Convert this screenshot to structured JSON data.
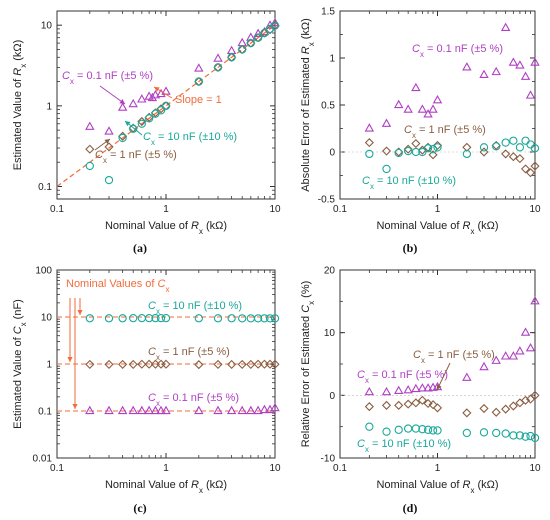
{
  "figure": {
    "panel_labels": [
      "(a)",
      "(b)",
      "(c)",
      "(d)"
    ]
  },
  "colors": {
    "c01": "#b13fc4",
    "c1": "#8a5e42",
    "c10": "#1aa89a",
    "ref": "#f26b3a"
  },
  "chart_data": [
    {
      "id": "a",
      "type": "scatter",
      "xscale": "log",
      "yscale": "log",
      "xlim": [
        0.1,
        10
      ],
      "ylim": [
        0.07,
        15
      ],
      "xticks": [
        0.1,
        1,
        10
      ],
      "xticklabels": [
        "0.1",
        "1",
        "10"
      ],
      "yticks": [
        0.1,
        1,
        10
      ],
      "yticklabels": [
        "0.1",
        "1",
        "10"
      ],
      "xlabel": "Nominal Value of R_x (kΩ)",
      "ylabel": "Estimated Value of R_x (kΩ)",
      "reference_line": {
        "label": "Slope = 1",
        "x": [
          0.1,
          10
        ],
        "y": [
          0.1,
          10
        ]
      },
      "series": [
        {
          "name": "C_x = 0.1 nF (±5 %)",
          "marker": "triangle",
          "color_key": "c01",
          "x": [
            0.2,
            0.3,
            0.4,
            0.5,
            0.6,
            0.7,
            0.75,
            0.8,
            0.9,
            1.0,
            2.0,
            3.0,
            4.0,
            5.0,
            6.0,
            7.0,
            8.0,
            9.0,
            10.0
          ],
          "y": [
            0.55,
            0.48,
            0.95,
            1.05,
            1.2,
            1.3,
            1.25,
            1.35,
            1.4,
            1.5,
            2.9,
            3.85,
            4.8,
            6.0,
            7.0,
            7.8,
            8.2,
            9.9,
            10.6
          ]
        },
        {
          "name": "C_x = 1 nF (±5 %)",
          "marker": "diamond",
          "color_key": "c1",
          "x": [
            0.2,
            0.3,
            0.4,
            0.5,
            0.6,
            0.7,
            0.8,
            0.9,
            1.0,
            2.0,
            3.0,
            4.0,
            5.0,
            6.0,
            7.0,
            8.0,
            9.0,
            10.0
          ],
          "y": [
            0.29,
            0.31,
            0.42,
            0.53,
            0.64,
            0.72,
            0.82,
            0.92,
            1.0,
            2.0,
            3.0,
            4.0,
            5.0,
            6.0,
            7.0,
            8.0,
            8.8,
            9.9
          ]
        },
        {
          "name": "C_x = 10 nF (±10 %)",
          "marker": "circle",
          "color_key": "c10",
          "x": [
            0.2,
            0.3,
            0.4,
            0.5,
            0.6,
            0.7,
            0.8,
            0.9,
            1.0,
            2.0,
            3.0,
            4.0,
            5.0,
            6.0,
            7.0,
            8.0,
            9.0,
            10.0
          ],
          "y": [
            0.18,
            0.12,
            0.4,
            0.52,
            0.6,
            0.7,
            0.8,
            0.88,
            1.0,
            2.0,
            3.0,
            4.0,
            5.0,
            6.0,
            7.0,
            8.0,
            9.0,
            9.9
          ]
        }
      ],
      "annotations": [
        {
          "text": "C_x = 0.1 nF (±5 %)",
          "color_key": "c01"
        },
        {
          "text": "Slope = 1",
          "color_key": "ref"
        },
        {
          "text": "C_x = 10 nF (±10 %)",
          "color_key": "c10"
        },
        {
          "text": "C_x = 1 nF (±5 %)",
          "color_key": "c1"
        }
      ]
    },
    {
      "id": "b",
      "type": "scatter",
      "xscale": "log",
      "yscale": "linear",
      "xlim": [
        0.1,
        10
      ],
      "ylim": [
        -0.5,
        1.5
      ],
      "xticks": [
        0.1,
        1,
        10
      ],
      "xticklabels": [
        "0.1",
        "1",
        "10"
      ],
      "yticks": [
        -0.5,
        0,
        0.5,
        1,
        1.5
      ],
      "yticklabels": [
        "-0.5",
        "0",
        "0.5",
        "1",
        "1.5"
      ],
      "xlabel": "Nominal Value of R_x (kΩ)",
      "ylabel": "Absolute Error of Estimated R_x (kΩ)",
      "series": [
        {
          "name": "C_x = 0.1 nF (±5 %)",
          "marker": "triangle",
          "color_key": "c01",
          "x": [
            0.2,
            0.3,
            0.4,
            0.5,
            0.6,
            0.7,
            0.8,
            0.9,
            1.0,
            2.0,
            3.0,
            4.0,
            5.0,
            6.0,
            7.0,
            8.0,
            9.0,
            10.0
          ],
          "y": [
            0.25,
            0.3,
            0.5,
            0.45,
            0.68,
            0.45,
            0.4,
            0.45,
            0.55,
            0.9,
            0.82,
            0.85,
            1.32,
            0.95,
            0.92,
            0.8,
            0.6,
            0.95
          ]
        },
        {
          "name": "C_x = 1 nF (±5 %)",
          "marker": "diamond",
          "color_key": "c1",
          "x": [
            0.2,
            0.3,
            0.4,
            0.5,
            0.6,
            0.7,
            0.8,
            0.9,
            1.0,
            2.0,
            3.0,
            4.0,
            5.0,
            6.0,
            7.0,
            8.0,
            9.0,
            10.0
          ],
          "y": [
            0.1,
            0.01,
            0.0,
            0.03,
            0.09,
            0.02,
            0.05,
            -0.03,
            0.07,
            0.05,
            0.0,
            0.07,
            -0.02,
            -0.05,
            -0.07,
            -0.18,
            -0.22,
            -0.15
          ]
        },
        {
          "name": "C_x = 10 nF (±10 %)",
          "marker": "circle",
          "color_key": "c10",
          "x": [
            0.2,
            0.3,
            0.4,
            0.5,
            0.6,
            0.7,
            0.8,
            0.9,
            1.0,
            2.0,
            3.0,
            4.0,
            5.0,
            6.0,
            7.0,
            8.0,
            9.0,
            10.0
          ],
          "y": [
            -0.02,
            -0.18,
            -0.01,
            0.01,
            0.0,
            0.0,
            0.04,
            0.03,
            0.05,
            -0.02,
            0.05,
            0.06,
            0.1,
            0.12,
            0.05,
            0.12,
            0.08,
            0.04
          ]
        }
      ],
      "annotations": [
        {
          "text": "C_x = 0.1 nF (±5 %)",
          "color_key": "c01"
        },
        {
          "text": "C_x = 1 nF (±5 %)",
          "color_key": "c1"
        },
        {
          "text": "C_x = 10 nF (±10 %)",
          "color_key": "c10"
        }
      ]
    },
    {
      "id": "c",
      "type": "scatter",
      "xscale": "log",
      "yscale": "log",
      "xlim": [
        0.1,
        10
      ],
      "ylim": [
        0.01,
        100
      ],
      "xticks": [
        0.1,
        1,
        10
      ],
      "xticklabels": [
        "0.1",
        "1",
        "10"
      ],
      "yticks": [
        0.01,
        0.1,
        1,
        10,
        100
      ],
      "yticklabels": [
        "0.01",
        "0.1",
        "1",
        "10",
        "100"
      ],
      "xlabel": "Nominal Value of R_x (kΩ)",
      "ylabel": "Estimated Value of C_x (nF)",
      "reference_lines": [
        0.1,
        1,
        10
      ],
      "series": [
        {
          "name": "C_x = 10 nF (±10 %)",
          "marker": "circle",
          "color_key": "c10",
          "x": [
            0.2,
            0.3,
            0.4,
            0.5,
            0.6,
            0.7,
            0.8,
            0.9,
            1.0,
            2.0,
            3.0,
            4.0,
            5.0,
            6.0,
            7.0,
            8.0,
            9.0,
            10.0
          ],
          "y": [
            9.4,
            9.4,
            9.4,
            9.45,
            9.45,
            9.45,
            9.45,
            9.45,
            9.45,
            9.4,
            9.4,
            9.4,
            9.35,
            9.35,
            9.35,
            9.35,
            9.35,
            9.35
          ]
        },
        {
          "name": "C_x = 1 nF (±5 %)",
          "marker": "diamond",
          "color_key": "c1",
          "x": [
            0.2,
            0.3,
            0.4,
            0.5,
            0.6,
            0.7,
            0.8,
            0.9,
            1.0,
            2.0,
            3.0,
            4.0,
            5.0,
            6.0,
            7.0,
            8.0,
            9.0,
            10.0
          ],
          "y": [
            0.98,
            0.98,
            0.98,
            0.98,
            0.99,
            0.99,
            0.99,
            0.99,
            0.99,
            0.97,
            0.98,
            0.98,
            0.98,
            0.98,
            0.99,
            0.99,
            0.99,
            0.99
          ]
        },
        {
          "name": "C_x = 0.1 nF (±5 %)",
          "marker": "triangle",
          "color_key": "c01",
          "x": [
            0.2,
            0.3,
            0.4,
            0.5,
            0.6,
            0.7,
            0.8,
            0.9,
            1.0,
            2.0,
            3.0,
            4.0,
            5.0,
            6.0,
            7.0,
            8.0,
            9.0,
            10.0
          ],
          "y": [
            0.1,
            0.1,
            0.1,
            0.1,
            0.1,
            0.1,
            0.1,
            0.1,
            0.1,
            0.1,
            0.1,
            0.1,
            0.1,
            0.1,
            0.1,
            0.105,
            0.105,
            0.115
          ]
        }
      ],
      "annotations": [
        {
          "text": "Nominal Values of C_x",
          "color_key": "ref"
        },
        {
          "text": "C_x = 10 nF (±10 %)",
          "color_key": "c10"
        },
        {
          "text": "C_x = 1 nF (±5 %)",
          "color_key": "c1"
        },
        {
          "text": "C_x = 0.1 nF (±5 %)",
          "color_key": "c01"
        }
      ]
    },
    {
      "id": "d",
      "type": "scatter",
      "xscale": "log",
      "yscale": "linear",
      "xlim": [
        0.1,
        10
      ],
      "ylim": [
        -10,
        20
      ],
      "xticks": [
        0.1,
        1,
        10
      ],
      "xticklabels": [
        "0.1",
        "1",
        "10"
      ],
      "yticks": [
        -10,
        0,
        10,
        20
      ],
      "yticklabels": [
        "-10",
        "0",
        "10",
        "20"
      ],
      "xlabel": "Nominal Value of R_x (kΩ)",
      "ylabel": "Relative Error of Estimated C_x (%)",
      "series": [
        {
          "name": "C_x = 0.1 nF (±5 %)",
          "marker": "triangle",
          "color_key": "c01",
          "x": [
            0.2,
            0.3,
            0.4,
            0.5,
            0.6,
            0.7,
            0.8,
            0.9,
            1.0,
            2.0,
            3.0,
            4.0,
            5.0,
            6.0,
            7.0,
            8.0,
            9.0,
            10.0
          ],
          "y": [
            0.5,
            0.5,
            0.7,
            0.8,
            1.0,
            1.1,
            1.1,
            1.2,
            1.3,
            2.8,
            4.5,
            5.5,
            6.2,
            6.2,
            7.0,
            10.0,
            7.5,
            15.0
          ]
        },
        {
          "name": "C_x = 1 nF (±5 %)",
          "marker": "diamond",
          "color_key": "c1",
          "x": [
            0.2,
            0.3,
            0.4,
            0.5,
            0.6,
            0.7,
            0.8,
            0.9,
            1.0,
            2.0,
            3.0,
            4.0,
            5.0,
            6.0,
            7.0,
            8.0,
            9.0,
            10.0
          ],
          "y": [
            -1.8,
            -1.6,
            -1.6,
            -1.4,
            -1.2,
            -0.8,
            -1.3,
            -1.5,
            -2.0,
            -2.8,
            -2.1,
            -2.7,
            -2.2,
            -1.7,
            -1.2,
            -0.8,
            -0.6,
            0.0
          ]
        },
        {
          "name": "C_x = 10 nF (±10 %)",
          "marker": "circle",
          "color_key": "c10",
          "x": [
            0.2,
            0.3,
            0.4,
            0.5,
            0.6,
            0.7,
            0.8,
            0.9,
            1.0,
            2.0,
            3.0,
            4.0,
            5.0,
            6.0,
            7.0,
            8.0,
            9.0,
            10.0
          ],
          "y": [
            -5.0,
            -5.8,
            -5.5,
            -5.3,
            -5.3,
            -5.4,
            -5.5,
            -5.6,
            -5.6,
            -6.0,
            -5.9,
            -6.0,
            -6.1,
            -6.4,
            -6.4,
            -6.6,
            -6.5,
            -6.8
          ]
        }
      ],
      "annotations": [
        {
          "text": "C_x = 0.1 nF (±5 %)",
          "color_key": "c01"
        },
        {
          "text": "C_x = 1 nF (±5 %)",
          "color_key": "c1"
        },
        {
          "text": "C_x = 10 nF (±10 %)",
          "color_key": "c10"
        }
      ]
    }
  ]
}
